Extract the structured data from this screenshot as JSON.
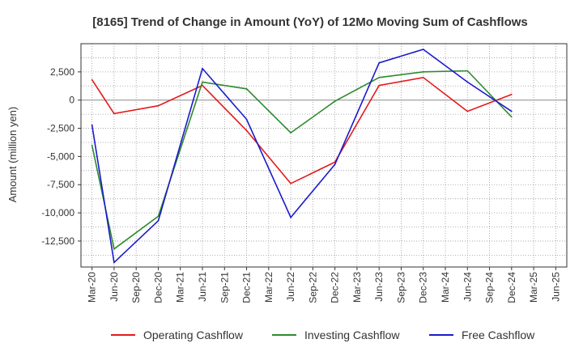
{
  "chart_data": {
    "type": "line",
    "title": "[8165]  Trend of Change in Amount (YoY) of 12Mo Moving Sum of Cashflows",
    "xlabel": "",
    "ylabel": "Amount (million yen)",
    "categories": [
      "Mar-20",
      "Jun-20",
      "Sep-20",
      "Dec-20",
      "Mar-21",
      "Jun-21",
      "Sep-21",
      "Dec-21",
      "Mar-22",
      "Jun-22",
      "Sep-22",
      "Dec-22",
      "Mar-23",
      "Jun-23",
      "Sep-23",
      "Dec-23",
      "Mar-24",
      "Jun-24",
      "Sep-24",
      "Dec-24",
      "Mar-25",
      "Jun-25"
    ],
    "yticks": [
      2500,
      0,
      -2500,
      -5000,
      -7500,
      -10000,
      -12500
    ],
    "ytick_labels": [
      "2,500",
      "0",
      "-2,500",
      "-5,000",
      "-7,500",
      "-10,000",
      "-12,500"
    ],
    "ylim": [
      -14800,
      5000
    ],
    "grid": true,
    "legend_position": "bottom",
    "series": [
      {
        "name": "Operating Cashflow",
        "color": "#e41a1c",
        "values": [
          1800,
          -1200,
          null,
          -500,
          null,
          1300,
          null,
          -2700,
          null,
          -7400,
          null,
          -5500,
          null,
          1300,
          null,
          2000,
          null,
          -1000,
          null,
          500,
          null,
          null
        ]
      },
      {
        "name": "Investing Cashflow",
        "color": "#2e8b2e",
        "values": [
          -4000,
          -13200,
          null,
          -10300,
          null,
          1600,
          null,
          1000,
          null,
          -2900,
          null,
          -100,
          null,
          2000,
          null,
          2500,
          null,
          2600,
          null,
          -1500,
          null,
          null
        ]
      },
      {
        "name": "Free Cashflow",
        "color": "#1a1acd",
        "values": [
          -2200,
          -14400,
          null,
          -10700,
          null,
          2800,
          null,
          -1700,
          null,
          -10400,
          null,
          -5700,
          null,
          3300,
          null,
          4500,
          null,
          1600,
          null,
          -1000,
          null,
          null
        ]
      }
    ]
  }
}
